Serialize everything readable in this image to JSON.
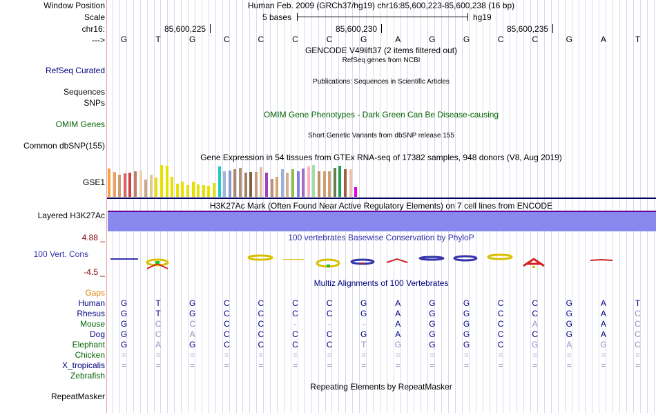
{
  "header": {
    "window_position_label": "Window Position",
    "window_position_value": "Human Feb. 2009 (GRCh37/hg19)   chr16:85,600,223-85,600,238 (16 bp)",
    "scale_label": "Scale",
    "scale_value": "5 bases",
    "scale_assembly": "hg19",
    "chrom_label": "chr16:",
    "strand_label": "--->",
    "ticks": [
      "85,600,225",
      "85,600,230",
      "85,600,235"
    ]
  },
  "bases": [
    "G",
    "T",
    "G",
    "C",
    "C",
    "C",
    "C",
    "G",
    "A",
    "G",
    "G",
    "C",
    "C",
    "G",
    "A",
    "T"
  ],
  "tracks": {
    "gencode_title": "GENCODE V49lift37 (2 items filtered out)",
    "refseq_title": "RefSeq genes from NCBI",
    "refseq_label": "RefSeq Curated",
    "publications_title": "Publications: Sequences in Scientific Articles",
    "sequences_label": "Sequences",
    "snps_label": "SNPs",
    "omim_title": "OMIM Gene Phenotypes - Dark Green Can Be Disease-causing",
    "omim_label": "OMIM Genes",
    "dbsnp_title": "Short Genetic Variants from dbSNP release 155",
    "dbsnp_label": "Common dbSNP(155)",
    "gtex_title": "Gene Expression in 54 tissues from GTEx RNA-seq of 17382 samples, 948 donors (V8, Aug 2019)",
    "gtex_label": "GSE1",
    "h3k_title": "H3K27Ac Mark (Often Found Near Active Regulatory Elements) on 7 cell lines from ENCODE",
    "h3k_label": "Layered H3K27Ac",
    "phylop_title": "100 vertebrates Basewise Conservation by PhyloP",
    "phylop_label": "100 Vert. Cons",
    "phylop_max": "4.88 _",
    "phylop_min": "-4.5 _",
    "multiz_title": "Multiz Alignments of 100 Vertebrates",
    "gaps_label": "Gaps",
    "repeat_title": "Repeating Elements by RepeatMasker",
    "repeat_label": "RepeatMasker"
  },
  "gtex_bars": [
    {
      "color": "#f8a040",
      "h": 0.9
    },
    {
      "color": "#f0a060",
      "h": 0.78
    },
    {
      "color": "#c8a070",
      "h": 0.7
    },
    {
      "color": "#e06060",
      "h": 0.74
    },
    {
      "color": "#d04040",
      "h": 0.76
    },
    {
      "color": "#c08060",
      "h": 0.8
    },
    {
      "color": "#f0d0b0",
      "h": 0.82
    },
    {
      "color": "#c8a880",
      "h": 0.54
    },
    {
      "color": "#e0c890",
      "h": 0.7
    },
    {
      "color": "#e8e000",
      "h": 0.6
    },
    {
      "color": "#e8e000",
      "h": 1.0
    },
    {
      "color": "#e8e000",
      "h": 0.98
    },
    {
      "color": "#e8e000",
      "h": 0.62
    },
    {
      "color": "#e8e000",
      "h": 0.42
    },
    {
      "color": "#e8e000",
      "h": 0.48
    },
    {
      "color": "#e8e000",
      "h": 0.36
    },
    {
      "color": "#e8e000",
      "h": 0.48
    },
    {
      "color": "#e8e000",
      "h": 0.4
    },
    {
      "color": "#e8e000",
      "h": 0.38
    },
    {
      "color": "#e8e000",
      "h": 0.34
    },
    {
      "color": "#e8e000",
      "h": 0.44
    },
    {
      "color": "#20c8c8",
      "h": 0.96
    },
    {
      "color": "#a0b8d8",
      "h": 0.8
    },
    {
      "color": "#8898d0",
      "h": 0.82
    },
    {
      "color": "#b08868",
      "h": 0.88
    },
    {
      "color": "#b09070",
      "h": 0.92
    },
    {
      "color": "#a08060",
      "h": 0.76
    },
    {
      "color": "#806040",
      "h": 0.78
    },
    {
      "color": "#c0a080",
      "h": 0.78
    },
    {
      "color": "#e0c0a0",
      "h": 0.94
    },
    {
      "color": "#a040c0",
      "h": 0.76
    },
    {
      "color": "#c09070",
      "h": 0.56
    },
    {
      "color": "#d0a878",
      "h": 0.62
    },
    {
      "color": "#a0b0d8",
      "h": 0.88
    },
    {
      "color": "#d0b090",
      "h": 0.76
    },
    {
      "color": "#90c040",
      "h": 0.88
    },
    {
      "color": "#8080e0",
      "h": 0.8
    },
    {
      "color": "#a070c0",
      "h": 0.9
    },
    {
      "color": "#ffb0c0",
      "h": 0.96
    },
    {
      "color": "#a0e0a0",
      "h": 1.0
    },
    {
      "color": "#c09068",
      "h": 0.8
    },
    {
      "color": "#d0a070",
      "h": 0.8
    },
    {
      "color": "#d0a070",
      "h": 0.8
    },
    {
      "color": "#608050",
      "h": 0.92
    },
    {
      "color": "#20a050",
      "h": 0.98
    },
    {
      "color": "#a06040",
      "h": 0.86
    },
    {
      "color": "#f0c0b0",
      "h": 0.88
    },
    {
      "color": "#e000e0",
      "h": 0.3
    }
  ],
  "multiz": {
    "species": [
      {
        "name": "Human",
        "color": "#000080",
        "bases": [
          "G",
          "T",
          "G",
          "C",
          "C",
          "C",
          "C",
          "G",
          "A",
          "G",
          "G",
          "C",
          "C",
          "G",
          "A",
          "T"
        ],
        "dim": []
      },
      {
        "name": "Rhesus",
        "color": "#000080",
        "bases": [
          "G",
          "T",
          "G",
          "C",
          "C",
          "C",
          "C",
          "G",
          "A",
          "G",
          "G",
          "C",
          "C",
          "G",
          "A",
          "C"
        ],
        "dim": [
          15
        ]
      },
      {
        "name": "Mouse",
        "color": "#006400",
        "bases": [
          "G",
          "C",
          "C",
          "C",
          "C",
          "-",
          "-",
          "-",
          "A",
          "G",
          "G",
          "C",
          "A",
          "G",
          "A",
          "C"
        ],
        "dim": [
          1,
          2,
          5,
          6,
          7,
          12,
          15
        ]
      },
      {
        "name": "Dog",
        "color": "#000080",
        "bases": [
          "G",
          "C",
          "A",
          "C",
          "C",
          "C",
          "C",
          "G",
          "A",
          "G",
          "G",
          "C",
          "C",
          "G",
          "A",
          "C"
        ],
        "dim": [
          1,
          2,
          15
        ]
      },
      {
        "name": "Elephant",
        "color": "#006400",
        "bases": [
          "G",
          "A",
          "G",
          "C",
          "C",
          "C",
          "C",
          "T",
          "G",
          "G",
          "G",
          "C",
          "G",
          "A",
          "G",
          "C"
        ],
        "dim": [
          1,
          7,
          8,
          12,
          13,
          14,
          15
        ]
      },
      {
        "name": "Chicken",
        "color": "#006400",
        "bases": [
          "=",
          "=",
          "=",
          "=",
          "=",
          "=",
          "=",
          "=",
          "=",
          "=",
          "=",
          "=",
          "=",
          "=",
          "=",
          "="
        ],
        "dim": "all"
      },
      {
        "name": "X_tropicalis",
        "color": "#000080",
        "bases": [
          "=",
          "=",
          "=",
          "=",
          "=",
          "=",
          "=",
          "=",
          "=",
          "=",
          "=",
          "=",
          "=",
          "=",
          "=",
          "="
        ],
        "dim": "all"
      },
      {
        "name": "Zebrafish",
        "color": "#006400",
        "bases": [],
        "dim": []
      }
    ]
  },
  "colors": {
    "navy": "#000080",
    "green": "#006400",
    "phylop": "#3333aa",
    "phylop_axis": "#800000",
    "h3k_fill": "#8888ee",
    "gaps": "#e08000"
  }
}
